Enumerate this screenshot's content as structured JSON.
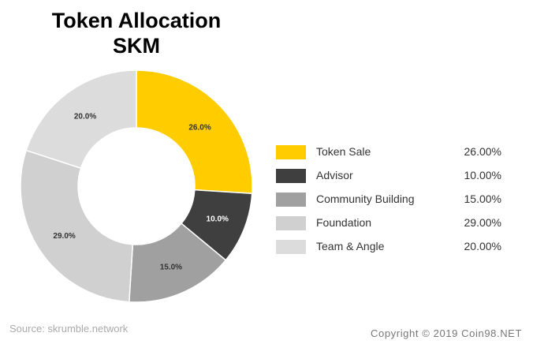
{
  "chart_data": {
    "type": "pie",
    "title_line1": "Token Allocation",
    "title_line2": "SKM",
    "categories": [
      "Token Sale",
      "Advisor",
      "Community Building",
      "Foundation",
      "Team & Angle"
    ],
    "values": [
      26.0,
      10.0,
      15.0,
      29.0,
      20.0
    ],
    "slice_labels": [
      "26.0%",
      "10.0%",
      "15.0%",
      "29.0%",
      "20.0%"
    ],
    "legend_values": [
      "26.00%",
      "10.00%",
      "15.00%",
      "29.00%",
      "20.00%"
    ],
    "colors": [
      "#FFCC00",
      "#3F3F3F",
      "#A0A0A0",
      "#D0D0D0",
      "#DCDCDC"
    ],
    "legend_placement": "right"
  },
  "source": "Source: skrumble.network",
  "copyright": "Copyright © 2019 Coin98.NET"
}
